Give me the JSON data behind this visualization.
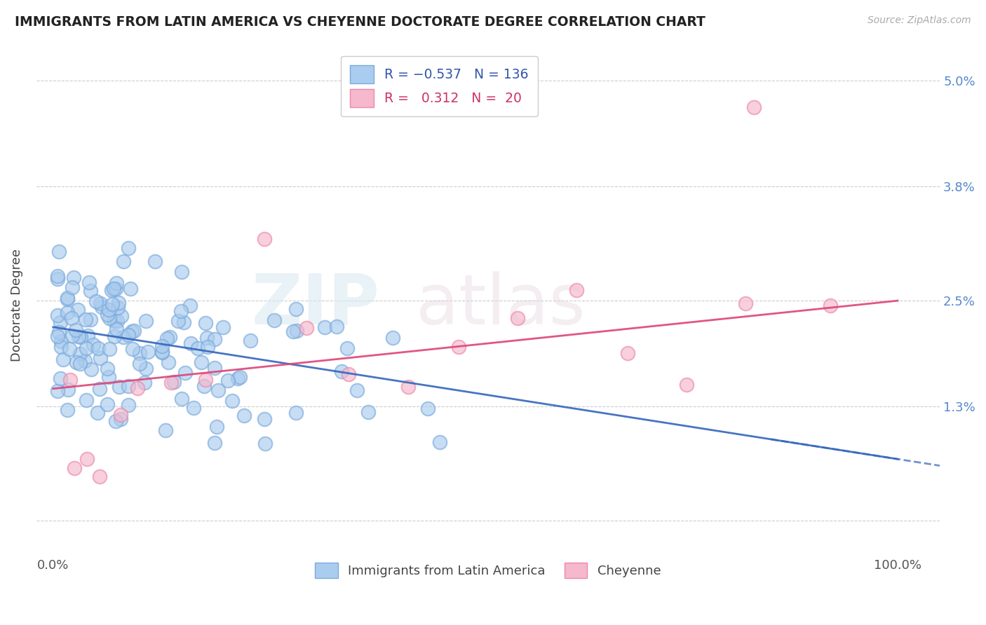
{
  "title": "IMMIGRANTS FROM LATIN AMERICA VS CHEYENNE DOCTORATE DEGREE CORRELATION CHART",
  "source_text": "Source: ZipAtlas.com",
  "ylabel": "Doctorate Degree",
  "blue_color": "#aaccee",
  "blue_edge_color": "#7aaadd",
  "pink_color": "#f5b8cc",
  "pink_edge_color": "#ee88aa",
  "blue_line_color": "#3366bb",
  "pink_line_color": "#dd4477",
  "watermark_color": "#dddddd",
  "ytick_color": "#5588cc",
  "xtick_color": "#555555",
  "title_color": "#222222",
  "source_color": "#aaaaaa",
  "grid_color": "#cccccc",
  "legend_edge_color": "#cccccc",
  "blue_legend_color": "#3355aa",
  "pink_legend_color": "#cc3366",
  "ytick_vals": [
    0.0,
    0.013,
    0.025,
    0.038,
    0.05
  ],
  "ytick_labels": [
    "",
    "1.3%",
    "2.5%",
    "3.8%",
    "5.0%"
  ],
  "blue_line_x0": 0,
  "blue_line_y0": 0.022,
  "blue_line_x1": 100,
  "blue_line_y1": 0.007,
  "pink_line_x0": 0,
  "pink_line_y0": 0.015,
  "pink_line_x1": 100,
  "pink_line_y1": 0.025,
  "xlim": [
    -2,
    105
  ],
  "ylim": [
    -0.004,
    0.053
  ]
}
